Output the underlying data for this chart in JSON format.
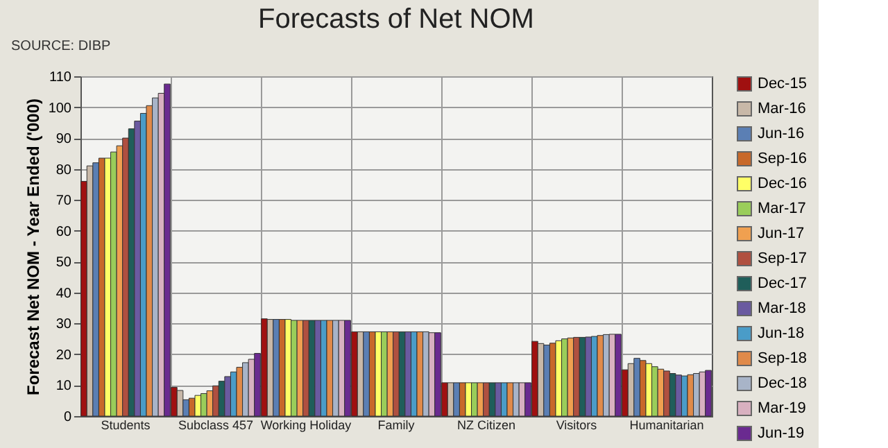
{
  "chart_data": {
    "type": "bar",
    "title": "Forecasts of Net NOM",
    "ylabel": "Forecast Net NOM - Year Ended ('000)",
    "annotations": [
      "SOURCE: DIBP"
    ],
    "categories": [
      "Students",
      "Subclass 457",
      "Working Holiday",
      "Family",
      "NZ Citizen",
      "Visitors",
      "Humanitarian"
    ],
    "series": [
      {
        "name": "Dec-15",
        "color": "#a01010",
        "values": [
          76,
          9.3,
          31.5,
          27.3,
          10.8,
          24.2,
          15.0
        ]
      },
      {
        "name": "Mar-16",
        "color": "#c8b8a8",
        "values": [
          81,
          8.3,
          31.3,
          27.3,
          10.8,
          23.5,
          17.0
        ]
      },
      {
        "name": "Jun-16",
        "color": "#5b7fb4",
        "values": [
          82,
          5.3,
          31.3,
          27.3,
          10.8,
          23.0,
          18.7
        ]
      },
      {
        "name": "Sep-16",
        "color": "#c8692a",
        "values": [
          83.5,
          5.8,
          31.3,
          27.3,
          10.8,
          23.6,
          18.0
        ]
      },
      {
        "name": "Dec-16",
        "color": "#ffff66",
        "values": [
          83.5,
          6.7,
          31.3,
          27.3,
          10.8,
          24.4,
          17.0
        ]
      },
      {
        "name": "Mar-17",
        "color": "#9acd5a",
        "values": [
          85.5,
          7.3,
          31.0,
          27.3,
          10.8,
          25.0,
          16.0
        ]
      },
      {
        "name": "Jun-17",
        "color": "#f0a050",
        "values": [
          87.5,
          8.2,
          31.0,
          27.3,
          10.8,
          25.3,
          15.2
        ]
      },
      {
        "name": "Sep-17",
        "color": "#b05040",
        "values": [
          90,
          9.8,
          31.0,
          27.3,
          10.8,
          25.5,
          14.6
        ]
      },
      {
        "name": "Dec-17",
        "color": "#1f5e5a",
        "values": [
          93,
          11.3,
          31.0,
          27.3,
          10.8,
          25.5,
          13.8
        ]
      },
      {
        "name": "Mar-18",
        "color": "#6a5aa0",
        "values": [
          95.5,
          12.8,
          31.0,
          27.3,
          10.8,
          25.6,
          13.3
        ]
      },
      {
        "name": "Jun-18",
        "color": "#4a9cc8",
        "values": [
          98,
          14.3,
          31.0,
          27.3,
          10.8,
          25.8,
          13.0
        ]
      },
      {
        "name": "Sep-18",
        "color": "#e08a4a",
        "values": [
          100.5,
          15.8,
          31.0,
          27.3,
          10.8,
          26.1,
          13.4
        ]
      },
      {
        "name": "Dec-18",
        "color": "#a8b4c8",
        "values": [
          103,
          17.3,
          31.0,
          27.3,
          10.8,
          26.4,
          13.8
        ]
      },
      {
        "name": "Mar-19",
        "color": "#d8b0c0",
        "values": [
          104.5,
          18.4,
          31.0,
          27.0,
          10.8,
          26.5,
          14.3
        ]
      },
      {
        "name": "Jun-19",
        "color": "#6a2a90",
        "values": [
          107.5,
          20.3,
          31.0,
          27.0,
          10.8,
          26.5,
          14.8
        ]
      }
    ],
    "ylim": [
      0,
      110
    ],
    "yticks": [
      0,
      10,
      20,
      30,
      40,
      50,
      60,
      70,
      80,
      90,
      100,
      110
    ],
    "grid": true,
    "legend": "right"
  }
}
